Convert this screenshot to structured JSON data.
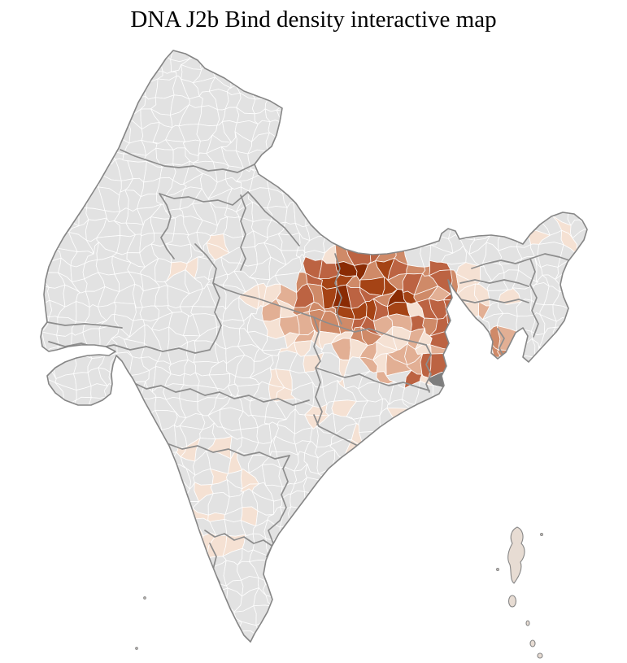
{
  "title": "DNA J2b Bind density interactive map",
  "map": {
    "country": "India",
    "unit": "districts",
    "palette": {
      "background": "#ffffff",
      "no_data_fill": "#e2e2e2",
      "density_levels": [
        "#f5e1d3",
        "#e2af94",
        "#cf8a68",
        "#bc6342",
        "#a54315",
        "#8a2b04"
      ],
      "special_district_fill": "#7d7d7d",
      "district_border": "#ffffff",
      "state_border": "#8d8d8d",
      "country_outline": "#868686",
      "islands_fill": "#e7dcd3"
    },
    "high_density_area": "Bihar and eastern Uttar Pradesh",
    "title_color": "#000000"
  }
}
